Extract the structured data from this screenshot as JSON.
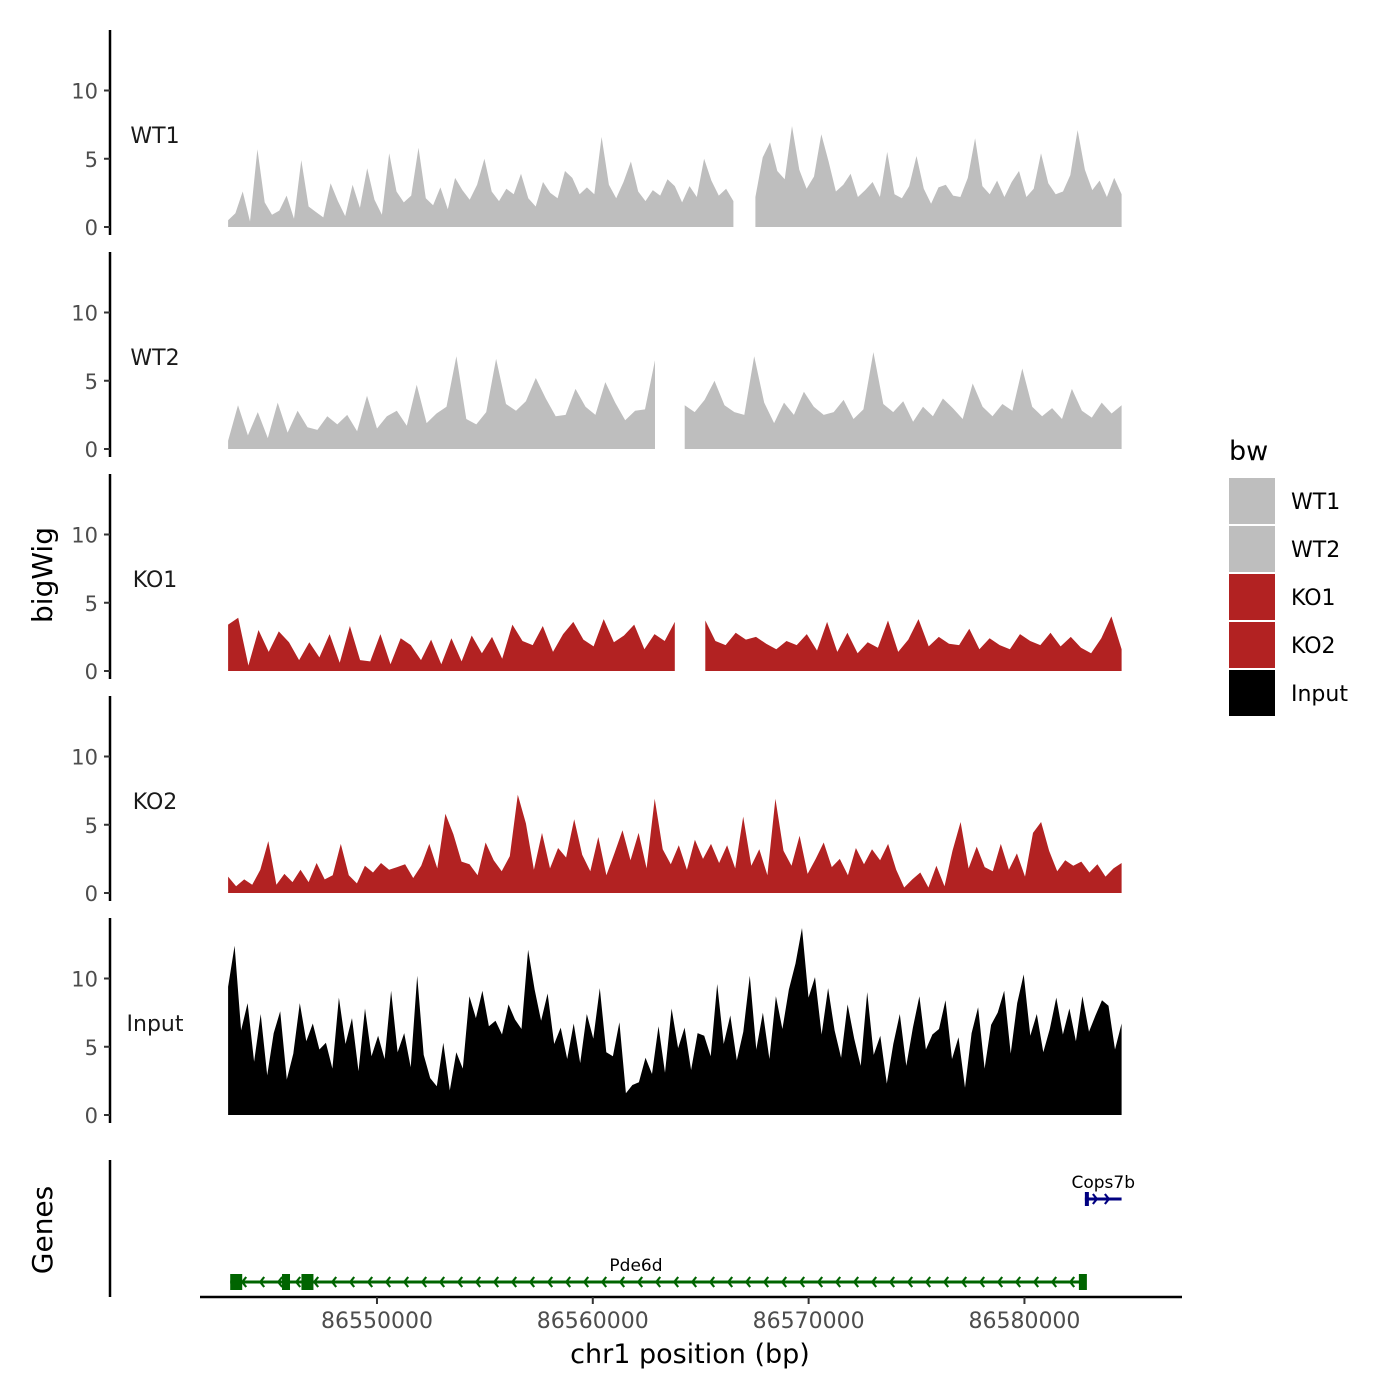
{
  "chart_data": {
    "type": "area",
    "ylabel": "bigWig",
    "xlabel": "chr1 position (bp)",
    "xlim": [
      86541800,
      86587300
    ],
    "ylim": [
      0,
      14
    ],
    "y_ticks": [
      0,
      5,
      10
    ],
    "x_ticks": [
      86550000,
      86560000,
      86570000,
      86580000
    ],
    "x_tick_labels": [
      "86550000",
      "86560000",
      "86570000",
      "86580000"
    ],
    "legend": {
      "title": "bw",
      "placement": "right",
      "entries": [
        {
          "label": "WT1",
          "color": "#bebebe"
        },
        {
          "label": "WT2",
          "color": "#bebebe"
        },
        {
          "label": "KO1",
          "color": "#b22222"
        },
        {
          "label": "KO2",
          "color": "#b22222"
        },
        {
          "label": "Input",
          "color": "#000000"
        }
      ]
    },
    "series": [
      {
        "name": "WT1",
        "color": "#bebebe",
        "x_start": 86543100,
        "x_end": 86584500,
        "gaps": [
          [
            86566700,
            86567300
          ]
        ],
        "values": [
          0.5,
          1,
          2.6,
          0.4,
          5.7,
          1.8,
          0.9,
          1.2,
          2.3,
          0.6,
          4.9,
          1.5,
          1.1,
          0.7,
          3.2,
          1.9,
          0.8,
          3.1,
          1.4,
          4.3,
          2.0,
          0.9,
          5.4,
          2.6,
          1.8,
          2.3,
          5.8,
          2.1,
          1.6,
          2.9,
          1.3,
          3.6,
          2.7,
          2.0,
          3.1,
          5.0,
          2.6,
          1.9,
          2.8,
          2.4,
          3.9,
          2.1,
          1.5,
          3.3,
          2.5,
          2.1,
          4.1,
          3.6,
          2.4,
          2.9,
          2.4,
          6.6,
          3.1,
          2.1,
          3.3,
          4.8,
          2.6,
          1.9,
          2.7,
          2.3,
          3.5,
          3.0,
          1.8,
          3.0,
          2.2,
          5.0,
          3.4,
          2.3,
          2.8,
          1.9,
          2.4,
          3.1,
          2.2,
          5.1,
          6.2,
          4.1,
          3.5,
          7.4,
          4.2,
          2.8,
          3.7,
          6.8,
          4.8,
          2.6,
          3.1,
          3.9,
          2.2,
          2.7,
          3.3,
          2.2,
          5.5,
          2.4,
          2.1,
          3.0,
          5.2,
          2.8,
          1.7,
          2.9,
          3.1,
          2.3,
          2.2,
          3.6,
          6.5,
          3.0,
          2.4,
          3.4,
          2.2,
          3.3,
          4.1,
          2.2,
          2.8,
          5.4,
          3.2,
          2.4,
          2.6,
          3.8,
          7.1,
          4.2,
          2.7,
          3.4,
          2.2,
          3.6,
          2.4
        ]
      },
      {
        "name": "WT2",
        "color": "#bebebe",
        "x_start": 86543100,
        "x_end": 86584500,
        "gaps": [
          [
            86563200,
            86563900
          ]
        ],
        "values": [
          0.6,
          3.2,
          1.0,
          2.7,
          0.8,
          3.4,
          1.2,
          2.8,
          1.6,
          1.4,
          2.4,
          1.8,
          2.5,
          1.3,
          3.9,
          1.5,
          2.4,
          2.8,
          1.7,
          4.7,
          1.9,
          2.6,
          3.1,
          6.8,
          2.2,
          1.8,
          2.7,
          6.6,
          3.3,
          2.8,
          3.5,
          5.2,
          3.7,
          2.4,
          2.5,
          4.4,
          3.1,
          2.5,
          4.9,
          3.4,
          2.1,
          2.8,
          2.9,
          6.5,
          3.1,
          2.8,
          3.2,
          2.7,
          3.6,
          5.0,
          3.2,
          2.7,
          2.5,
          6.8,
          3.4,
          1.9,
          3.4,
          2.5,
          4.2,
          3.1,
          2.5,
          2.7,
          3.6,
          2.2,
          2.9,
          7.1,
          3.3,
          2.7,
          3.5,
          2.0,
          3.1,
          2.4,
          3.7,
          3.0,
          2.2,
          4.8,
          3.1,
          2.4,
          3.3,
          2.8,
          5.9,
          3.1,
          2.4,
          3.0,
          2.2,
          4.4,
          2.8,
          2.3,
          3.4,
          2.6,
          3.2
        ]
      },
      {
        "name": "KO1",
        "color": "#b22222",
        "x_start": 86543100,
        "x_end": 86584500,
        "gaps": [
          [
            86564000,
            86564800
          ]
        ],
        "values": [
          3.4,
          3.9,
          0.4,
          3.0,
          1.4,
          2.9,
          2.1,
          0.8,
          2.1,
          1.0,
          2.7,
          0.6,
          3.3,
          0.8,
          0.7,
          2.7,
          0.5,
          2.4,
          1.9,
          0.8,
          2.3,
          0.5,
          2.4,
          0.7,
          2.6,
          1.3,
          2.5,
          0.9,
          3.4,
          2.2,
          1.9,
          3.3,
          1.4,
          2.7,
          3.6,
          2.3,
          1.8,
          3.8,
          2.1,
          2.6,
          3.4,
          1.6,
          2.7,
          2.2,
          3.6,
          1.8,
          2.1,
          3.7,
          2.2,
          1.9,
          2.8,
          2.3,
          2.5,
          2.0,
          1.6,
          2.2,
          1.9,
          2.7,
          1.5,
          3.6,
          1.4,
          2.8,
          1.3,
          2.1,
          1.7,
          3.7,
          1.4,
          2.3,
          3.8,
          1.8,
          2.5,
          2.0,
          1.9,
          3.1,
          1.6,
          2.4,
          1.9,
          1.6,
          2.7,
          2.2,
          1.9,
          2.8,
          1.8,
          2.5,
          1.7,
          1.3,
          2.4,
          4.0,
          1.6
        ]
      },
      {
        "name": "KO2",
        "color": "#b22222",
        "x_start": 86543100,
        "x_end": 86584500,
        "gaps": [],
        "values": [
          1.2,
          0.5,
          1.0,
          0.6,
          1.7,
          3.8,
          0.6,
          1.4,
          0.8,
          1.7,
          0.8,
          2.2,
          1.0,
          1.3,
          3.6,
          1.3,
          0.7,
          2.0,
          1.5,
          2.2,
          1.7,
          1.9,
          2.1,
          1.1,
          2.0,
          3.6,
          1.8,
          5.8,
          4.3,
          2.3,
          2.1,
          1.3,
          3.7,
          2.4,
          1.6,
          2.7,
          7.2,
          5.1,
          1.7,
          4.4,
          1.8,
          3.3,
          2.6,
          5.4,
          2.8,
          1.6,
          4.1,
          1.3,
          2.9,
          4.6,
          2.4,
          4.4,
          1.8,
          6.9,
          3.2,
          2.1,
          3.5,
          1.7,
          3.9,
          2.5,
          3.6,
          2.2,
          3.5,
          1.8,
          5.6,
          2.0,
          3.2,
          1.3,
          6.9,
          3.1,
          2.0,
          4.2,
          1.4,
          2.5,
          3.7,
          1.9,
          2.5,
          1.3,
          3.3,
          2.1,
          3.2,
          2.4,
          3.6,
          1.7,
          0.4,
          1.0,
          1.5,
          0.4,
          2.0,
          0.5,
          3.1,
          5.2,
          1.8,
          3.4,
          1.9,
          1.6,
          3.6,
          1.7,
          2.9,
          1.2,
          4.4,
          5.2,
          3.1,
          1.6,
          2.4,
          2.0,
          2.3,
          1.5,
          2.1,
          1.2,
          1.8,
          2.2
        ]
      },
      {
        "name": "Input",
        "color": "#000000",
        "x_start": 86543100,
        "x_end": 86584500,
        "gaps": [],
        "values": [
          9.4,
          12.4,
          6.2,
          8.2,
          3.9,
          7.4,
          2.9,
          6.0,
          7.6,
          2.6,
          4.5,
          8.2,
          5.4,
          6.7,
          4.8,
          5.3,
          3.4,
          8.6,
          5.2,
          7.1,
          3.2,
          7.8,
          4.3,
          5.8,
          4.1,
          9.1,
          4.6,
          6.0,
          3.5,
          10.2,
          4.4,
          2.7,
          2.1,
          5.3,
          1.8,
          4.6,
          3.4,
          8.7,
          7.1,
          9.1,
          6.5,
          6.9,
          5.9,
          8.1,
          7.0,
          6.3,
          12.1,
          9.2,
          6.9,
          8.9,
          5.2,
          6.4,
          4.1,
          6.7,
          3.8,
          7.4,
          5.6,
          9.3,
          4.6,
          4.3,
          6.8,
          1.6,
          2.2,
          2.4,
          4.2,
          3.0,
          6.5,
          3.1,
          7.8,
          4.9,
          6.4,
          3.3,
          6.0,
          5.8,
          4.3,
          9.6,
          5.2,
          7.3,
          4.0,
          6.1,
          10.2,
          4.8,
          7.5,
          4.1,
          8.7,
          6.3,
          9.2,
          11.1,
          13.7,
          8.6,
          10.1,
          5.9,
          9.3,
          6.2,
          4.2,
          8.1,
          5.6,
          3.6,
          9.0,
          4.4,
          5.8,
          2.3,
          5.2,
          7.4,
          3.6,
          6.4,
          8.7,
          4.8,
          5.9,
          6.3,
          8.4,
          4.1,
          5.7,
          2.0,
          6.0,
          7.9,
          3.4,
          6.6,
          7.5,
          9.1,
          4.5,
          8.2,
          10.3,
          5.8,
          7.4,
          4.6,
          6.3,
          8.6,
          5.9,
          7.8,
          5.4,
          8.7,
          6.1,
          7.3,
          8.4,
          8.0,
          4.8,
          6.7
        ]
      }
    ],
    "genes": {
      "label": "Genes",
      "items": [
        {
          "name": "Pde6d",
          "start": 86543200,
          "end": 86582800,
          "strand": "-",
          "color": "#006400"
        },
        {
          "name": "Cops7b",
          "start": 86582800,
          "end": 86584500,
          "strand": "+",
          "color": "#000080"
        }
      ]
    }
  }
}
